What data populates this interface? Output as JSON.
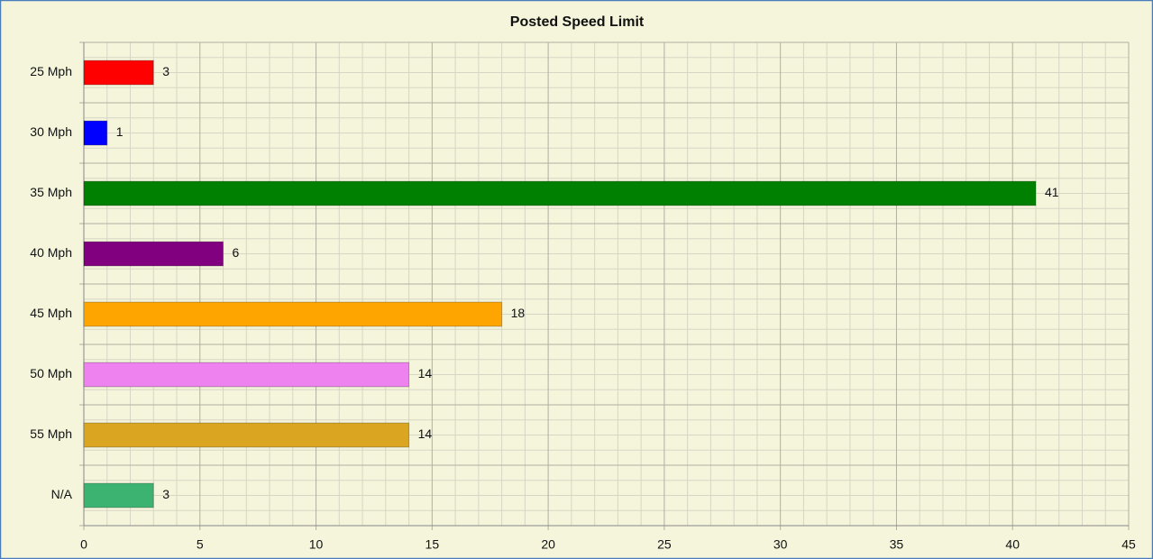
{
  "chart_data": {
    "type": "hbar",
    "title": "Posted Speed Limit",
    "categories": [
      "25 Mph",
      "30 Mph",
      "35 Mph",
      "40 Mph",
      "45 Mph",
      "50 Mph",
      "55 Mph",
      "N/A"
    ],
    "values": [
      3,
      1,
      41,
      6,
      18,
      14,
      14,
      3
    ],
    "colors": [
      "#ff0000",
      "#0000ff",
      "#008000",
      "#800080",
      "#ffa500",
      "#ee82ee",
      "#daa520",
      "#3cb371"
    ],
    "xlim": [
      0,
      45
    ],
    "xticks": [
      0,
      5,
      10,
      15,
      20,
      25,
      30,
      35,
      40,
      45
    ],
    "grid": true,
    "minor_grid": true
  }
}
